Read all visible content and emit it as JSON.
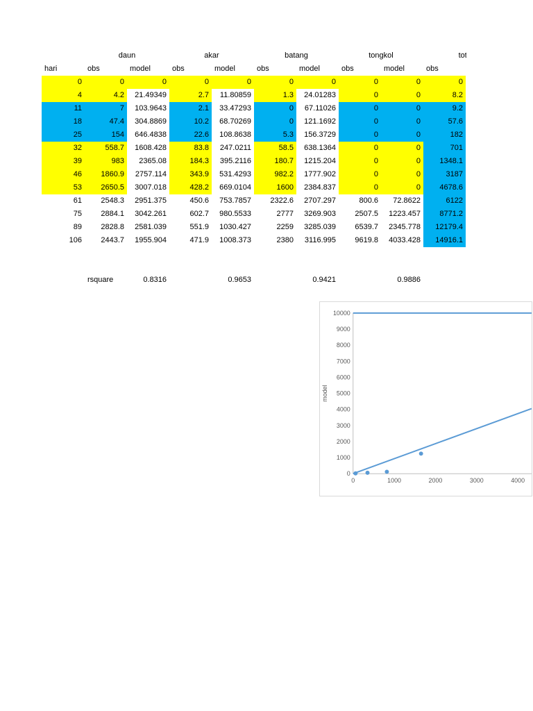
{
  "colors": {
    "yellow": "#ffff00",
    "cyan": "#00b0f0",
    "line_blue": "#5b9bd5",
    "axis_gray": "#bfbfbf",
    "tick_text": "#595959",
    "chart_border": "#d9d9d9"
  },
  "table": {
    "groups": [
      {
        "label": "daun"
      },
      {
        "label": "akar"
      },
      {
        "label": "batang"
      },
      {
        "label": "tongkol"
      },
      {
        "label": "total"
      }
    ],
    "col_headers": [
      "hari",
      "obs",
      "model",
      "obs",
      "model",
      "obs",
      "model",
      "obs",
      "model",
      "obs"
    ],
    "rows": [
      {
        "hari": "0",
        "values": [
          "0",
          "0",
          "0",
          "0",
          "0",
          "0",
          "0",
          "0",
          "0"
        ],
        "pattern": "full",
        "color": "yellow",
        "tot": "yellow"
      },
      {
        "hari": "4",
        "values": [
          "4.2",
          "21.49349",
          "2.7",
          "11.80859",
          "1.3",
          "24.01283",
          "0",
          "0",
          "8.2"
        ],
        "pattern": "partial",
        "color": "yellow",
        "tot": "yellow"
      },
      {
        "hari": "11",
        "values": [
          "7",
          "103.9643",
          "2.1",
          "33.47293",
          "0",
          "67.11026",
          "0",
          "0",
          "9.2"
        ],
        "pattern": "partial",
        "color": "cyan",
        "tot": "cyan"
      },
      {
        "hari": "18",
        "values": [
          "47.4",
          "304.8869",
          "10.2",
          "68.70269",
          "0",
          "121.1692",
          "0",
          "0",
          "57.6"
        ],
        "pattern": "partial",
        "color": "cyan",
        "tot": "cyan"
      },
      {
        "hari": "25",
        "values": [
          "154",
          "646.4838",
          "22.6",
          "108.8638",
          "5.3",
          "156.3729",
          "0",
          "0",
          "182"
        ],
        "pattern": "partial",
        "color": "cyan",
        "tot": "cyan"
      },
      {
        "hari": "32",
        "values": [
          "558.7",
          "1608.428",
          "83.8",
          "247.0211",
          "58.5",
          "638.1364",
          "0",
          "0",
          "701"
        ],
        "pattern": "partial",
        "color": "yellow",
        "tot": "cyan"
      },
      {
        "hari": "39",
        "values": [
          "983",
          "2365.08",
          "184.3",
          "395.2116",
          "180.7",
          "1215.204",
          "0",
          "0",
          "1348.1"
        ],
        "pattern": "partial",
        "color": "yellow",
        "tot": "cyan"
      },
      {
        "hari": "46",
        "values": [
          "1860.9",
          "2757.114",
          "343.9",
          "531.4293",
          "982.2",
          "1777.902",
          "0",
          "0",
          "3187"
        ],
        "pattern": "partial",
        "color": "yellow",
        "tot": "cyan"
      },
      {
        "hari": "53",
        "values": [
          "2650.5",
          "3007.018",
          "428.2",
          "669.0104",
          "1600",
          "2384.837",
          "0",
          "0",
          "4678.6"
        ],
        "pattern": "partial",
        "color": "yellow",
        "tot": "cyan"
      },
      {
        "hari": "61",
        "values": [
          "2548.3",
          "2951.375",
          "450.6",
          "753.7857",
          "2322.6",
          "2707.297",
          "800.6",
          "72.8622",
          "6122"
        ],
        "pattern": "none",
        "color": "none",
        "tot": "cyan"
      },
      {
        "hari": "75",
        "values": [
          "2884.1",
          "3042.261",
          "602.7",
          "980.5533",
          "2777",
          "3269.903",
          "2507.5",
          "1223.457",
          "8771.2"
        ],
        "pattern": "none",
        "color": "none",
        "tot": "cyan"
      },
      {
        "hari": "89",
        "values": [
          "2828.8",
          "2581.039",
          "551.9",
          "1030.427",
          "2259",
          "3285.039",
          "6539.7",
          "2345.778",
          "12179.4"
        ],
        "pattern": "none",
        "color": "none",
        "tot": "cyan"
      },
      {
        "hari": "106",
        "values": [
          "2443.7",
          "1955.904",
          "471.9",
          "1008.373",
          "2380",
          "3116.995",
          "9619.8",
          "4033.428",
          "14916.1"
        ],
        "pattern": "none",
        "color": "none",
        "tot": "cyan"
      }
    ],
    "rsquare": {
      "label": "rsquare",
      "values": [
        "0.8316",
        "0.9653",
        "0.9421",
        "0.9886"
      ]
    }
  },
  "chart_data": {
    "type": "scatter",
    "title": "",
    "xlabel": "",
    "ylabel": "model",
    "xlim": [
      0,
      4333
    ],
    "ylim": [
      0,
      10000
    ],
    "x_ticks": [
      0,
      1000,
      2000,
      3000,
      4000
    ],
    "y_ticks": [
      0,
      1000,
      2000,
      3000,
      4000,
      5000,
      6000,
      7000,
      8000,
      9000,
      10000
    ],
    "grid": false,
    "legend": "none",
    "series": [
      {
        "name": "cap-line-10000",
        "type": "line",
        "points": [
          [
            0,
            10000
          ],
          [
            4333,
            10000
          ]
        ]
      },
      {
        "name": "fit-line",
        "type": "line",
        "points": [
          [
            0,
            0
          ],
          [
            4333,
            4050
          ]
        ]
      },
      {
        "name": "obs-vs-model-points",
        "type": "scatter",
        "points": [
          [
            60,
            20
          ],
          [
            350,
            60
          ],
          [
            820,
            120
          ],
          [
            1650,
            1250
          ]
        ]
      }
    ]
  }
}
